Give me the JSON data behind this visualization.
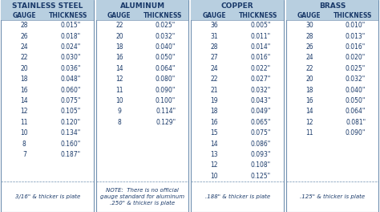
{
  "sections": [
    {
      "title": "STAINLESS STEEL",
      "col1": "GAUGE",
      "col2": "THICKNESS",
      "rows": [
        [
          "28",
          "0.015\""
        ],
        [
          "26",
          "0.018\""
        ],
        [
          "24",
          "0.024\""
        ],
        [
          "22",
          "0.030\""
        ],
        [
          "20",
          "0.036\""
        ],
        [
          "18",
          "0.048\""
        ],
        [
          "16",
          "0.060\""
        ],
        [
          "14",
          "0.075\""
        ],
        [
          "12",
          "0.105\""
        ],
        [
          "11",
          "0.120\""
        ],
        [
          "10",
          "0.134\""
        ],
        [
          "8",
          "0.160\""
        ],
        [
          "7",
          "0.187\""
        ]
      ],
      "note": "3/16\" & thicker is plate"
    },
    {
      "title": "ALUMINUM",
      "col1": "GAUGE",
      "col2": "THICKNESS",
      "rows": [
        [
          "22",
          "0.025\""
        ],
        [
          "20",
          "0.032\""
        ],
        [
          "18",
          "0.040\""
        ],
        [
          "16",
          "0.050\""
        ],
        [
          "14",
          "0.064\""
        ],
        [
          "12",
          "0.080\""
        ],
        [
          "11",
          "0.090\""
        ],
        [
          "10",
          "0.100\""
        ],
        [
          "9",
          "0.114\""
        ],
        [
          "8",
          "0.129\""
        ]
      ],
      "note": "NOTE:  There is no official\ngauge standard for aluminum\n.250\" & thicker is plate"
    },
    {
      "title": "COPPER",
      "col1": "GAUGE",
      "col2": "THICKNESS",
      "rows": [
        [
          "36",
          "0.005\""
        ],
        [
          "31",
          "0.011\""
        ],
        [
          "28",
          "0.014\""
        ],
        [
          "27",
          "0.016\""
        ],
        [
          "24",
          "0.022\""
        ],
        [
          "22",
          "0.027\""
        ],
        [
          "21",
          "0.032\""
        ],
        [
          "19",
          "0.043\""
        ],
        [
          "18",
          "0.049\""
        ],
        [
          "16",
          "0.065\""
        ],
        [
          "15",
          "0.075\""
        ],
        [
          "14",
          "0.086\""
        ],
        [
          "13",
          "0.093\""
        ],
        [
          "12",
          "0.108\""
        ],
        [
          "10",
          "0.125\""
        ]
      ],
      "note": ".188\" & thicker is plate"
    },
    {
      "title": "BRASS",
      "col1": "GAUGE",
      "col2": "THICKNESS",
      "rows": [
        [
          "30",
          "0.010\""
        ],
        [
          "28",
          "0.013\""
        ],
        [
          "26",
          "0.016\""
        ],
        [
          "24",
          "0.020\""
        ],
        [
          "22",
          "0.025\""
        ],
        [
          "20",
          "0.032\""
        ],
        [
          "18",
          "0.040\""
        ],
        [
          "16",
          "0.050\""
        ],
        [
          "14",
          "0.064\""
        ],
        [
          "12",
          "0.081\""
        ],
        [
          "11",
          "0.090\""
        ]
      ],
      "note": ".125\" & thicker is plate"
    }
  ],
  "bg_color": "#ffffff",
  "header_bg": "#b8cfe0",
  "border_color": "#7090b0",
  "title_color": "#1a3a6a",
  "text_color": "#1a3a6a",
  "note_color": "#1a3a6a",
  "col_header_fontsize": 5.5,
  "data_fontsize": 5.5,
  "note_fontsize": 5.0,
  "title_fontsize": 6.5
}
